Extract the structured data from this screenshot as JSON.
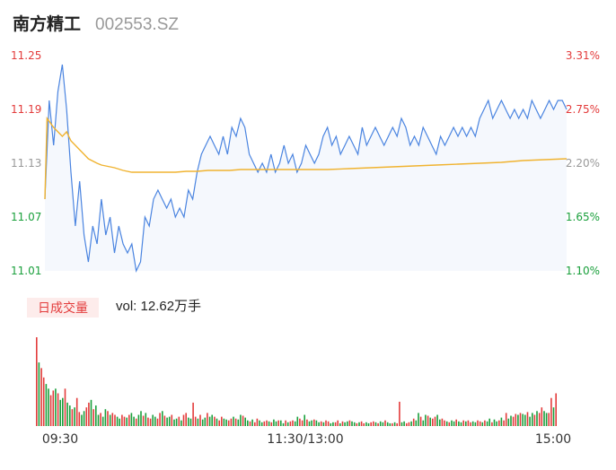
{
  "header": {
    "name": "南方精工",
    "code": "002553.SZ"
  },
  "legend": {
    "label": "日成交量"
  },
  "volume_readout": {
    "prefix": "vol:",
    "value": "12.62万手"
  },
  "colors": {
    "price_line": "#4a84e0",
    "avg_line": "#f0b330",
    "area_fill": "#f5f8fd",
    "up": "#e33b3b",
    "down": "#1aa03c",
    "neutral": "#999999"
  },
  "chart_data": [
    {
      "type": "line",
      "title": "",
      "x_ticks": [
        "09:30",
        "11:30/13:00",
        "15:00"
      ],
      "y_ticks": [
        "11.25",
        "11.19",
        "11.13",
        "11.07",
        "11.01"
      ],
      "y_ticks_right": [
        "3.31%",
        "2.75%",
        "2.20%",
        "1.65%",
        "1.10%"
      ],
      "ylim": [
        11.01,
        11.25
      ],
      "series": [
        {
          "role": "price",
          "x": [
            0,
            2,
            4,
            6,
            8,
            10,
            12,
            14,
            16,
            18,
            20,
            22,
            24,
            26,
            28,
            30,
            32,
            34,
            36,
            38,
            40,
            42,
            44,
            46,
            48,
            50,
            52,
            54,
            56,
            58,
            60,
            62,
            64,
            66,
            68,
            70,
            72,
            74,
            76,
            78,
            80,
            82,
            84,
            86,
            88,
            90,
            92,
            94,
            96,
            98,
            100,
            102,
            104,
            106,
            108,
            110,
            112,
            114,
            116,
            118,
            120,
            122,
            124,
            126,
            128,
            130,
            132,
            134,
            136,
            138,
            140,
            142,
            144,
            146,
            148,
            150,
            152,
            154,
            156,
            158,
            160,
            162,
            164,
            166,
            168,
            170,
            172,
            174,
            176,
            178,
            180,
            182,
            184,
            186,
            188,
            190,
            192,
            194,
            196,
            198,
            200,
            202,
            204,
            206,
            208,
            210,
            212,
            214,
            216,
            218,
            220,
            222,
            224,
            226,
            228,
            230,
            232,
            234,
            236,
            238,
            240
          ],
          "values": [
            11.09,
            11.2,
            11.15,
            11.21,
            11.24,
            11.19,
            11.12,
            11.06,
            11.11,
            11.05,
            11.02,
            11.06,
            11.04,
            11.09,
            11.05,
            11.07,
            11.03,
            11.06,
            11.04,
            11.03,
            11.04,
            11.01,
            11.02,
            11.07,
            11.06,
            11.09,
            11.1,
            11.09,
            11.08,
            11.09,
            11.07,
            11.08,
            11.07,
            11.1,
            11.09,
            11.12,
            11.14,
            11.15,
            11.16,
            11.15,
            11.14,
            11.16,
            11.14,
            11.17,
            11.16,
            11.18,
            11.17,
            11.14,
            11.13,
            11.12,
            11.13,
            11.12,
            11.14,
            11.12,
            11.13,
            11.15,
            11.13,
            11.14,
            11.12,
            11.13,
            11.15,
            11.14,
            11.13,
            11.14,
            11.16,
            11.17,
            11.15,
            11.16,
            11.14,
            11.15,
            11.16,
            11.15,
            11.14,
            11.17,
            11.15,
            11.16,
            11.17,
            11.16,
            11.15,
            11.16,
            11.17,
            11.16,
            11.18,
            11.17,
            11.15,
            11.16,
            11.15,
            11.17,
            11.16,
            11.15,
            11.14,
            11.16,
            11.15,
            11.16,
            11.17,
            11.16,
            11.17,
            11.16,
            11.17,
            11.16,
            11.18,
            11.19,
            11.2,
            11.18,
            11.19,
            11.2,
            11.19,
            11.18,
            11.19,
            11.18,
            11.19,
            11.18,
            11.2,
            11.19,
            11.18,
            11.19,
            11.2,
            11.19,
            11.2,
            11.2,
            11.19
          ]
        },
        {
          "role": "average",
          "x": [
            0,
            1,
            4,
            8,
            10,
            12,
            14,
            16,
            18,
            20,
            24,
            26,
            28,
            30,
            32,
            36,
            40,
            45,
            50,
            55,
            60,
            65,
            70,
            75,
            80,
            85,
            90,
            95,
            100,
            105,
            110,
            115,
            120,
            130,
            140,
            150,
            160,
            170,
            180,
            190,
            200,
            210,
            220,
            230,
            240
          ],
          "values": [
            11.09,
            11.18,
            11.17,
            11.16,
            11.165,
            11.155,
            11.15,
            11.145,
            11.14,
            11.135,
            11.13,
            11.128,
            11.127,
            11.126,
            11.125,
            11.122,
            11.12,
            11.12,
            11.12,
            11.12,
            11.12,
            11.121,
            11.121,
            11.122,
            11.122,
            11.122,
            11.123,
            11.123,
            11.123,
            11.123,
            11.123,
            11.123,
            11.123,
            11.123,
            11.124,
            11.125,
            11.126,
            11.127,
            11.128,
            11.129,
            11.13,
            11.131,
            11.133,
            11.134,
            11.135
          ]
        }
      ]
    },
    {
      "type": "bar",
      "title": "日成交量",
      "values": [
        95,
        68,
        62,
        52,
        45,
        40,
        33,
        38,
        40,
        35,
        28,
        30,
        40,
        25,
        22,
        18,
        20,
        30,
        15,
        12,
        16,
        20,
        25,
        28,
        18,
        22,
        12,
        14,
        10,
        18,
        16,
        12,
        14,
        12,
        10,
        8,
        12,
        10,
        9,
        12,
        14,
        10,
        8,
        12,
        16,
        11,
        14,
        9,
        8,
        12,
        10,
        8,
        14,
        16,
        11,
        9,
        10,
        12,
        7,
        8,
        10,
        6,
        12,
        14,
        9,
        8,
        25,
        10,
        8,
        12,
        7,
        9,
        14,
        10,
        12,
        10,
        8,
        6,
        10,
        8,
        7,
        6,
        8,
        10,
        8,
        7,
        12,
        11,
        9,
        6,
        5,
        7,
        4,
        8,
        6,
        4,
        5,
        6,
        5,
        4,
        7,
        5,
        6,
        6,
        3,
        6,
        4,
        5,
        6,
        5,
        10,
        8,
        6,
        12,
        7,
        5,
        6,
        7,
        6,
        4,
        5,
        4,
        6,
        5,
        3,
        4,
        4,
        6,
        3,
        5,
        4,
        5,
        6,
        5,
        4,
        3,
        4,
        5,
        3,
        4,
        3,
        4,
        5,
        4,
        3,
        5,
        4,
        6,
        4,
        3,
        3,
        4,
        3,
        26,
        4,
        5,
        3,
        4,
        5,
        8,
        6,
        14,
        10,
        6,
        12,
        11,
        9,
        8,
        10,
        12,
        7,
        8,
        6,
        5,
        4,
        6,
        5,
        7,
        5,
        4,
        6,
        5,
        6,
        4,
        5,
        4,
        6,
        5,
        4,
        6,
        5,
        8,
        4,
        7,
        5,
        6,
        9,
        6,
        14,
        8,
        11,
        10,
        13,
        12,
        14,
        13,
        12,
        15,
        10,
        14,
        12,
        16,
        14,
        20,
        16,
        14,
        14,
        30,
        20,
        35
      ]
    }
  ]
}
